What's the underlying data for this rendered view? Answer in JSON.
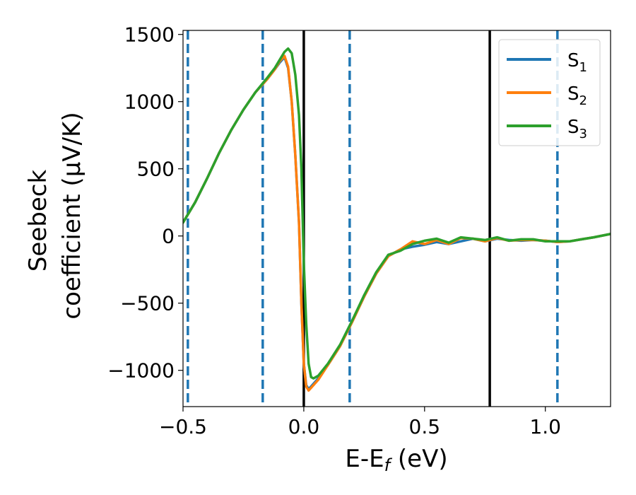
{
  "chart_data": {
    "type": "line",
    "xlabel": {
      "main": "E-E",
      "sub": "f",
      "tail": " (eV)"
    },
    "ylabel_lines": [
      "Seebeck",
      "coefficient  (μV/K)"
    ],
    "xlim": [
      -0.5,
      1.27
    ],
    "ylim": [
      -1270,
      1530
    ],
    "xticks": [
      -0.5,
      0.0,
      0.5,
      1.0
    ],
    "xtick_labels": [
      "−0.5",
      "0.0",
      "0.5",
      "1.0"
    ],
    "yticks": [
      -1000,
      -500,
      0,
      500,
      1000,
      1500
    ],
    "ytick_labels": [
      "−1000",
      "−500",
      "0",
      "500",
      "1000",
      "1500"
    ],
    "grid": false,
    "legend_position": "top-right",
    "vertical_lines_solid": [
      0.0,
      0.77
    ],
    "vertical_lines_dashed": [
      -0.48,
      -0.17,
      0.19,
      1.05
    ],
    "series": [
      {
        "name": "S",
        "sub": "1",
        "color": "#1f77b4",
        "points": [
          [
            -0.5,
            100
          ],
          [
            -0.45,
            250
          ],
          [
            -0.4,
            430
          ],
          [
            -0.35,
            620
          ],
          [
            -0.3,
            790
          ],
          [
            -0.25,
            940
          ],
          [
            -0.2,
            1070
          ],
          [
            -0.15,
            1170
          ],
          [
            -0.12,
            1240
          ],
          [
            -0.1,
            1290
          ],
          [
            -0.08,
            1330
          ],
          [
            -0.065,
            1250
          ],
          [
            -0.05,
            1000
          ],
          [
            -0.035,
            600
          ],
          [
            -0.02,
            100
          ],
          [
            -0.01,
            -500
          ],
          [
            0.0,
            -950
          ],
          [
            0.01,
            -1110
          ],
          [
            0.02,
            -1140
          ],
          [
            0.03,
            -1120
          ],
          [
            0.06,
            -1060
          ],
          [
            0.1,
            -960
          ],
          [
            0.15,
            -820
          ],
          [
            0.2,
            -640
          ],
          [
            0.25,
            -450
          ],
          [
            0.3,
            -280
          ],
          [
            0.35,
            -150
          ],
          [
            0.4,
            -100
          ],
          [
            0.45,
            -80
          ],
          [
            0.5,
            -65
          ],
          [
            0.55,
            -45
          ],
          [
            0.6,
            -60
          ],
          [
            0.65,
            -40
          ],
          [
            0.7,
            -20
          ],
          [
            0.75,
            -40
          ],
          [
            0.8,
            -20
          ],
          [
            0.85,
            -30
          ],
          [
            0.9,
            -35
          ],
          [
            0.95,
            -30
          ],
          [
            1.0,
            -35
          ],
          [
            1.05,
            -45
          ],
          [
            1.1,
            -40
          ],
          [
            1.15,
            -25
          ],
          [
            1.2,
            -10
          ],
          [
            1.27,
            15
          ]
        ]
      },
      {
        "name": "S",
        "sub": "2",
        "color": "#ff7f0e",
        "points": [
          [
            -0.5,
            100
          ],
          [
            -0.45,
            250
          ],
          [
            -0.4,
            430
          ],
          [
            -0.35,
            620
          ],
          [
            -0.3,
            790
          ],
          [
            -0.25,
            940
          ],
          [
            -0.2,
            1070
          ],
          [
            -0.15,
            1170
          ],
          [
            -0.12,
            1240
          ],
          [
            -0.1,
            1300
          ],
          [
            -0.08,
            1340
          ],
          [
            -0.065,
            1260
          ],
          [
            -0.05,
            1000
          ],
          [
            -0.035,
            600
          ],
          [
            -0.02,
            100
          ],
          [
            -0.01,
            -500
          ],
          [
            0.0,
            -950
          ],
          [
            0.01,
            -1120
          ],
          [
            0.02,
            -1150
          ],
          [
            0.03,
            -1130
          ],
          [
            0.06,
            -1070
          ],
          [
            0.1,
            -960
          ],
          [
            0.15,
            -820
          ],
          [
            0.2,
            -640
          ],
          [
            0.25,
            -450
          ],
          [
            0.3,
            -280
          ],
          [
            0.35,
            -150
          ],
          [
            0.4,
            -100
          ],
          [
            0.45,
            -40
          ],
          [
            0.5,
            -60
          ],
          [
            0.55,
            -30
          ],
          [
            0.6,
            -60
          ],
          [
            0.65,
            -15
          ],
          [
            0.7,
            -20
          ],
          [
            0.75,
            -40
          ],
          [
            0.8,
            -15
          ],
          [
            0.85,
            -35
          ],
          [
            0.9,
            -30
          ],
          [
            0.95,
            -30
          ],
          [
            1.0,
            -35
          ],
          [
            1.05,
            -45
          ],
          [
            1.1,
            -40
          ],
          [
            1.15,
            -25
          ],
          [
            1.2,
            -10
          ],
          [
            1.27,
            15
          ]
        ]
      },
      {
        "name": "S",
        "sub": "3",
        "color": "#2ca02c",
        "points": [
          [
            -0.5,
            100
          ],
          [
            -0.45,
            250
          ],
          [
            -0.4,
            430
          ],
          [
            -0.35,
            620
          ],
          [
            -0.3,
            790
          ],
          [
            -0.25,
            940
          ],
          [
            -0.2,
            1070
          ],
          [
            -0.15,
            1180
          ],
          [
            -0.12,
            1250
          ],
          [
            -0.1,
            1310
          ],
          [
            -0.08,
            1370
          ],
          [
            -0.065,
            1395
          ],
          [
            -0.05,
            1360
          ],
          [
            -0.035,
            1200
          ],
          [
            -0.02,
            900
          ],
          [
            -0.01,
            500
          ],
          [
            0.0,
            -200
          ],
          [
            0.01,
            -650
          ],
          [
            0.02,
            -950
          ],
          [
            0.03,
            -1050
          ],
          [
            0.04,
            -1060
          ],
          [
            0.06,
            -1040
          ],
          [
            0.1,
            -950
          ],
          [
            0.15,
            -810
          ],
          [
            0.2,
            -630
          ],
          [
            0.25,
            -440
          ],
          [
            0.3,
            -270
          ],
          [
            0.35,
            -140
          ],
          [
            0.4,
            -110
          ],
          [
            0.45,
            -60
          ],
          [
            0.5,
            -35
          ],
          [
            0.55,
            -20
          ],
          [
            0.6,
            -50
          ],
          [
            0.65,
            -10
          ],
          [
            0.7,
            -20
          ],
          [
            0.75,
            -30
          ],
          [
            0.8,
            -10
          ],
          [
            0.85,
            -35
          ],
          [
            0.9,
            -25
          ],
          [
            0.95,
            -25
          ],
          [
            1.0,
            -40
          ],
          [
            1.05,
            -40
          ],
          [
            1.1,
            -40
          ],
          [
            1.15,
            -25
          ],
          [
            1.2,
            -10
          ],
          [
            1.27,
            15
          ]
        ]
      }
    ]
  }
}
